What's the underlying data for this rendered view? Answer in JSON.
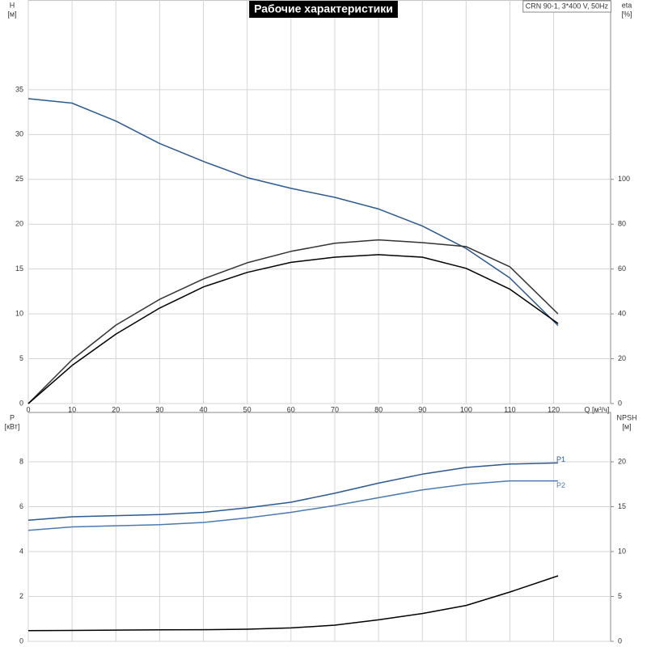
{
  "chart_data": [
    {
      "type": "line",
      "title": "Рабочие характеристики",
      "annotation": "CRN 90-1, 3*400 V, 50Hz",
      "ylabel": "H",
      "yunit": "[м]",
      "y2label": "eta",
      "y2unit": "[%]",
      "xlabel": "Q [м³/ч]",
      "x": [
        0,
        10,
        20,
        30,
        40,
        50,
        60,
        70,
        80,
        90,
        100,
        110,
        121
      ],
      "xlim": [
        0,
        133
      ],
      "xticks": [
        0,
        10,
        20,
        30,
        40,
        50,
        60,
        70,
        80,
        90,
        100,
        110,
        120
      ],
      "show_xtick_labels": true,
      "ylim": [
        0,
        45
      ],
      "yticks": [
        0,
        5,
        10,
        15,
        20,
        25,
        30,
        35
      ],
      "y2lim": [
        0,
        180
      ],
      "y2ticks": [
        0,
        20,
        40,
        60,
        80,
        100
      ],
      "grid": true,
      "series": [
        {
          "color": "#2a5a8f",
          "axis": "y",
          "values": [
            34,
            33.5,
            31.5,
            29,
            27,
            25.2,
            24,
            23,
            21.7,
            19.8,
            17.3,
            14,
            8.7
          ]
        },
        {
          "color": "#333333",
          "axis": "y2",
          "values": [
            0,
            19.5,
            35,
            46.5,
            55.6,
            62.8,
            67.9,
            71.5,
            73,
            71.8,
            70,
            61,
            40
          ]
        },
        {
          "color": "#000000",
          "axis": "y2",
          "values": [
            0,
            17,
            31,
            42.6,
            52,
            58.5,
            63,
            65.3,
            66.4,
            65.3,
            60.3,
            51,
            35.7
          ]
        }
      ]
    },
    {
      "type": "line",
      "ylabel": "P",
      "yunit": "[кВт]",
      "y2label": "NPSH",
      "y2unit": "[м]",
      "x": [
        0,
        10,
        20,
        30,
        40,
        50,
        60,
        70,
        80,
        90,
        100,
        110,
        121
      ],
      "xlim": [
        0,
        133
      ],
      "xticks": [
        0,
        10,
        20,
        30,
        40,
        50,
        60,
        70,
        80,
        90,
        100,
        110,
        120
      ],
      "show_xtick_labels": false,
      "ylim": [
        0,
        10.2
      ],
      "yticks": [
        0,
        2,
        4,
        6,
        8
      ],
      "y2lim": [
        0,
        25.5
      ],
      "y2ticks": [
        0,
        5,
        10,
        15,
        20
      ],
      "grid": true,
      "series": [
        {
          "name": "P1",
          "color": "#2a5a8f",
          "axis": "y",
          "values": [
            5.4,
            5.55,
            5.6,
            5.65,
            5.75,
            5.95,
            6.2,
            6.6,
            7.05,
            7.45,
            7.75,
            7.9,
            7.95
          ]
        },
        {
          "name": "P2",
          "color": "#4a7ab0",
          "axis": "y",
          "values": [
            4.95,
            5.1,
            5.15,
            5.2,
            5.3,
            5.5,
            5.75,
            6.05,
            6.4,
            6.75,
            7.0,
            7.15,
            7.15
          ]
        },
        {
          "color": "#000000",
          "axis": "y2",
          "values": [
            1.2,
            1.22,
            1.25,
            1.28,
            1.3,
            1.35,
            1.5,
            1.8,
            2.4,
            3.1,
            4.0,
            5.5,
            7.3
          ]
        }
      ]
    }
  ]
}
